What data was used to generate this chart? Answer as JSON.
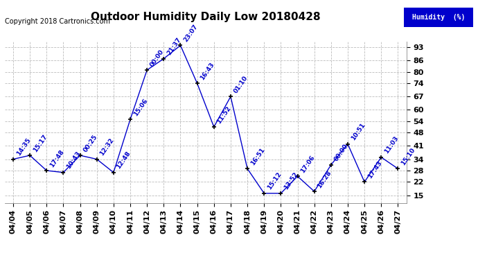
{
  "title": "Outdoor Humidity Daily Low 20180428",
  "copyright": "Copyright 2018 Cartronics.com",
  "legend_label": "Humidity  (%)",
  "background_color": "#ffffff",
  "plot_bg_color": "#ffffff",
  "grid_color": "#bbbbbb",
  "line_color": "#0000cc",
  "label_color": "#0000cc",
  "yticks": [
    15,
    22,
    28,
    34,
    41,
    48,
    54,
    60,
    67,
    74,
    80,
    86,
    93
  ],
  "ylim": [
    11,
    96
  ],
  "dates": [
    "04/04",
    "04/05",
    "04/06",
    "04/07",
    "04/08",
    "04/09",
    "04/10",
    "04/11",
    "04/12",
    "04/13",
    "04/14",
    "04/15",
    "04/16",
    "04/17",
    "04/18",
    "04/19",
    "04/20",
    "04/21",
    "04/22",
    "04/23",
    "04/24",
    "04/25",
    "04/26",
    "04/27"
  ],
  "values": [
    34,
    36,
    28,
    27,
    36,
    34,
    27,
    55,
    81,
    87,
    94,
    74,
    51,
    67,
    29,
    16,
    16,
    25,
    17,
    31,
    42,
    22,
    35,
    29
  ],
  "times": [
    "14:35",
    "15:17",
    "17:48",
    "10:43",
    "00:25",
    "12:32",
    "12:48",
    "15:06",
    "00:00",
    "21:37",
    "23:07",
    "16:43",
    "11:52",
    "01:10",
    "16:51",
    "15:12",
    "13:52",
    "17:06",
    "16:28",
    "00:00",
    "10:51",
    "17:43",
    "11:03",
    "15:10"
  ],
  "title_fontsize": 11,
  "copyright_fontsize": 7,
  "tick_label_fontsize": 8,
  "annotation_fontsize": 6.5
}
